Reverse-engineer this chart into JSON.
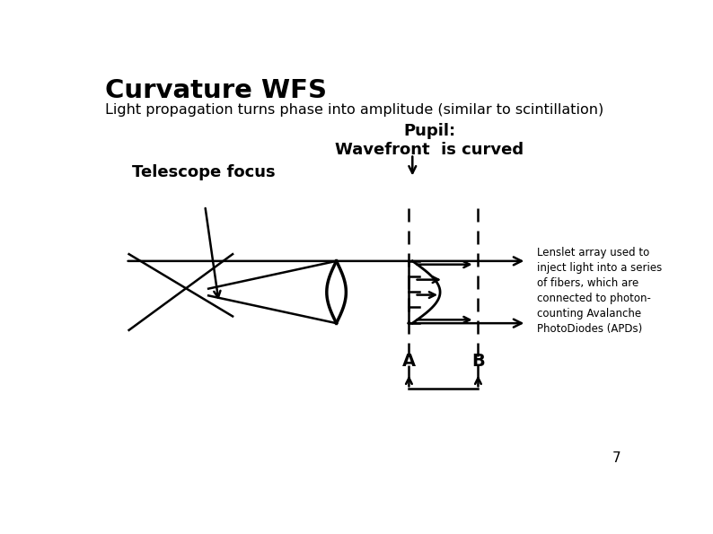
{
  "title": "Curvature WFS",
  "subtitle": "Light propagation turns phase into amplitude (similar to scintillation)",
  "pupil_label": "Pupil:\nWavefront  is curved",
  "telescope_label": "Telescope focus",
  "lenslet_note": "Lenslet array used to\ninject light into a series\nof fibers, which are\nconnected to photon-\ncounting Avalanche\nPhotoDiodes (APDs)",
  "label_A": "A",
  "label_B": "B",
  "page_number": "7",
  "bg_color": "#ffffff",
  "line_color": "#000000"
}
